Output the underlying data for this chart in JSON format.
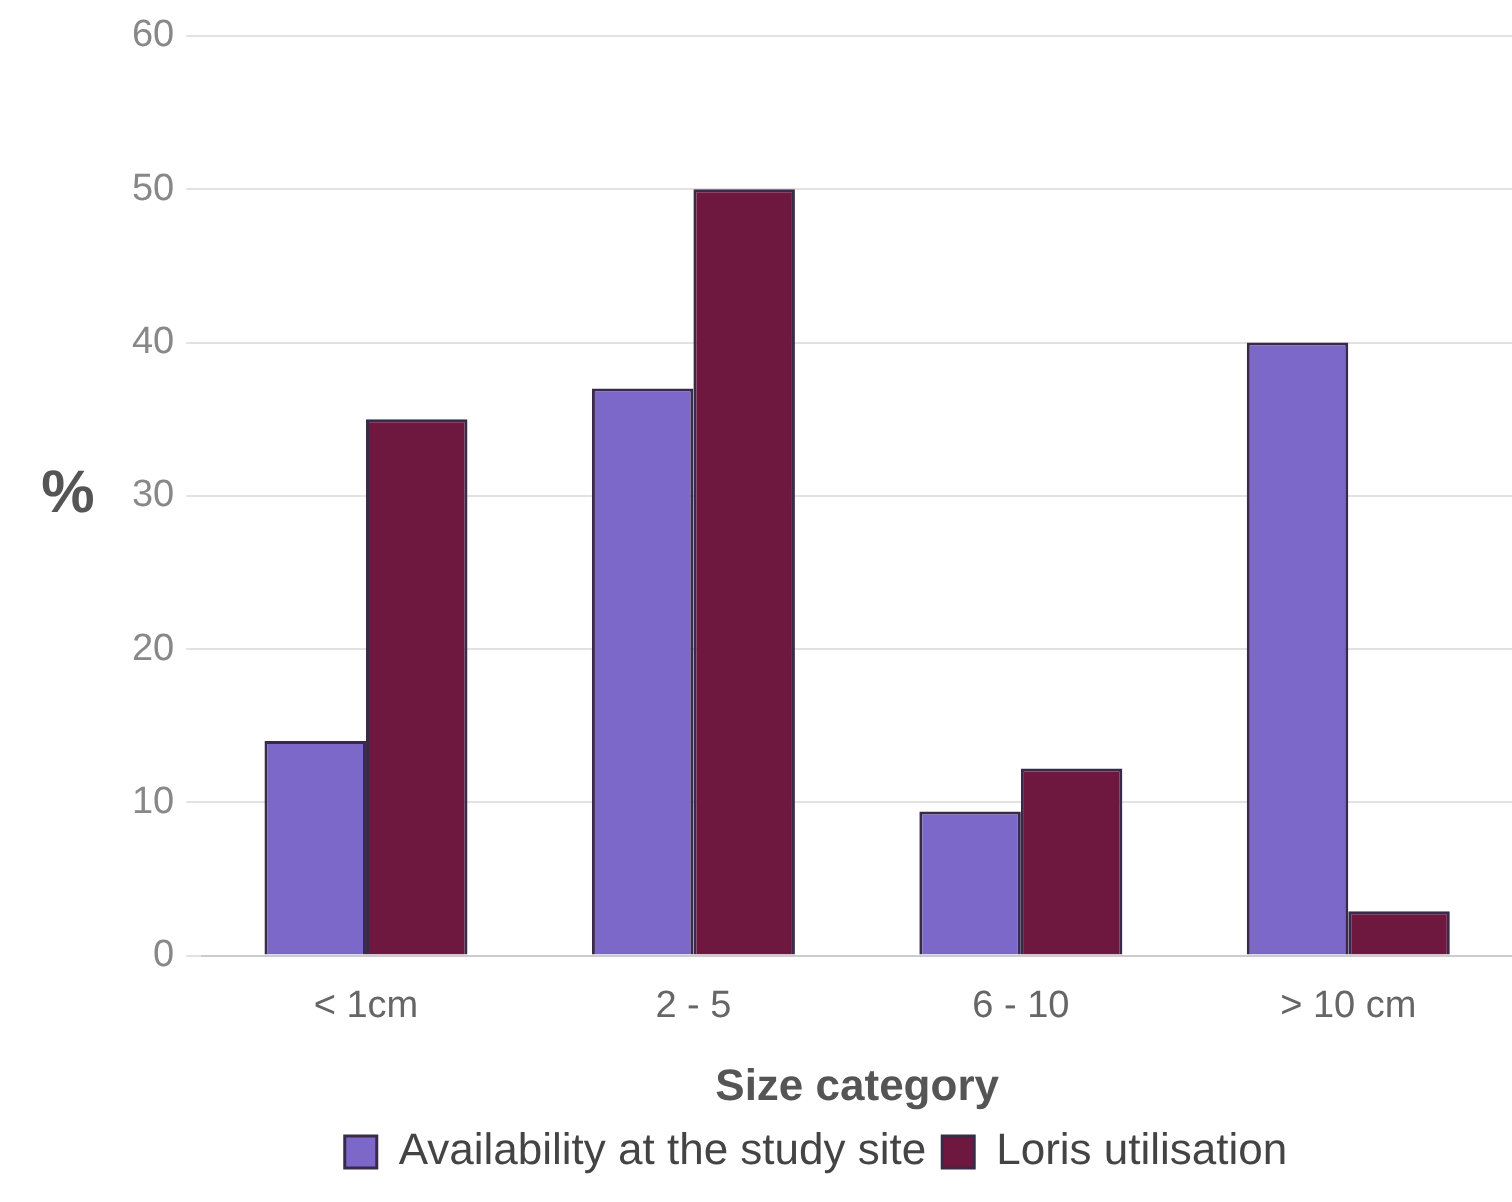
{
  "chart_data": {
    "type": "bar",
    "xlabel": "Size category",
    "ylabel": "%",
    "categories": [
      "< 1cm",
      "2 - 5",
      "6 - 10",
      "> 10 cm"
    ],
    "series": [
      {
        "name": "Availability at the study site",
        "color": "#7b68c8",
        "values": [
          14,
          37,
          9.4,
          40
        ]
      },
      {
        "name": "Loris utilisation",
        "color": "#6e1840",
        "values": [
          35,
          50,
          12.2,
          2.9
        ]
      }
    ],
    "ylim": [
      0,
      60
    ],
    "yticks": [
      0,
      10,
      20,
      30,
      40,
      50,
      60
    ],
    "grid": "y",
    "legend": "bottom"
  }
}
